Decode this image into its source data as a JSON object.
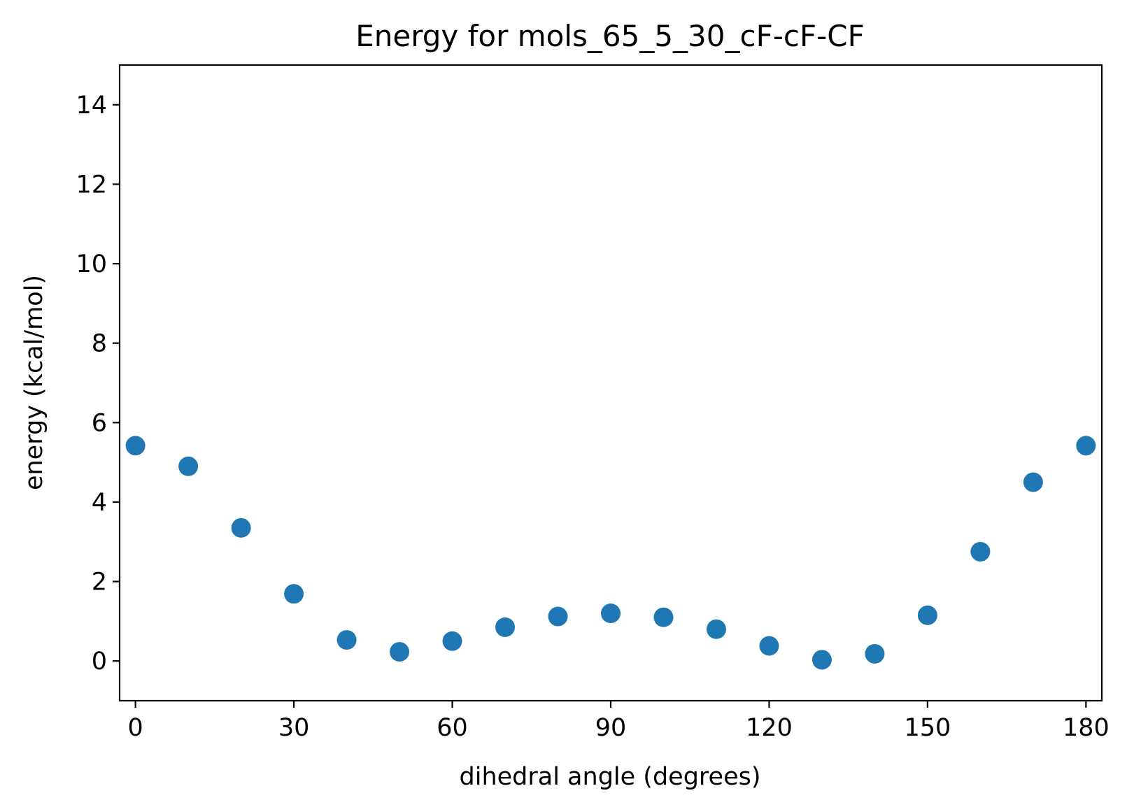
{
  "chart_data": {
    "type": "scatter",
    "title": "Energy for mols_65_5_30_cF-cF-CF",
    "xlabel": "dihedral angle (degrees)",
    "ylabel": "energy (kcal/mol)",
    "xlim": [
      -3,
      183
    ],
    "ylim": [
      -1,
      15
    ],
    "xticks": [
      0,
      30,
      60,
      90,
      120,
      150,
      180
    ],
    "yticks": [
      0,
      2,
      4,
      6,
      8,
      10,
      12,
      14
    ],
    "grid": false,
    "color": "#1f77b4",
    "series": [
      {
        "x": [
          0,
          10,
          20,
          30,
          40,
          50,
          60,
          70,
          80,
          90,
          100,
          110,
          120,
          130,
          140,
          150,
          160,
          170,
          180
        ],
        "y": [
          5.42,
          4.9,
          3.35,
          1.69,
          0.53,
          0.23,
          0.5,
          0.85,
          1.12,
          1.2,
          1.1,
          0.8,
          0.38,
          0.03,
          0.18,
          1.15,
          2.75,
          4.5,
          5.42
        ]
      }
    ]
  }
}
